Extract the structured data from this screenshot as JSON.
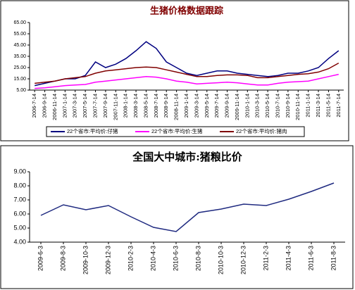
{
  "chart_data": [
    {
      "type": "line",
      "title": "生猪价格数据跟踪",
      "title_color": "#800000",
      "categories": [
        "2006-7-14",
        "2006-9-14",
        "2006-11-14",
        "2007-1-14",
        "2007-3-14",
        "2007-5-14",
        "2007-7-14",
        "2007-9-14",
        "2007-11-14",
        "2008-1-14",
        "2008-3-14",
        "2008-5-14",
        "2008-7-14",
        "2008-9-14",
        "2008-11-14",
        "2009-1-14",
        "2009-3-14",
        "2009-5-14",
        "2009-7-14",
        "2009-9-14",
        "2009-11-14",
        "2010-1-14",
        "2010-3-14",
        "2010-5-14",
        "2010-7-14",
        "2010-9-14",
        "2010-11-14",
        "2011-1-14",
        "2011-3-14",
        "2011-5-14",
        "2011-7-14"
      ],
      "series": [
        {
          "name": "22个省市:平均价:仔猪",
          "color": "#000080",
          "values": [
            9,
            11,
            13,
            15,
            15,
            18,
            30,
            25,
            28,
            33,
            40,
            48,
            42,
            30,
            25,
            20,
            18,
            20,
            22,
            22,
            20,
            19,
            18,
            17,
            18,
            20,
            20,
            22,
            25,
            33,
            40
          ]
        },
        {
          "name": "22个省市:平均价:生猪",
          "color": "#ff00ff",
          "values": [
            6.5,
            7,
            8,
            9,
            9.5,
            10,
            12,
            13,
            14,
            15,
            16,
            17,
            16.5,
            15,
            13,
            12,
            10.5,
            11,
            11.5,
            12,
            11.5,
            10.5,
            9.5,
            9.5,
            11,
            12,
            12.5,
            13,
            15,
            17,
            19
          ]
        },
        {
          "name": "22个省市:平均价:猪肉",
          "color": "#800000",
          "values": [
            11,
            12,
            13,
            15,
            16,
            17,
            20,
            22,
            23,
            24,
            25,
            25.5,
            25,
            23,
            21,
            19,
            17,
            17,
            18,
            18.5,
            18.5,
            18,
            16,
            16,
            17,
            18,
            19,
            19.5,
            21,
            24,
            29
          ]
        }
      ],
      "ylim": [
        5,
        65
      ],
      "yticks": [
        {
          "value": 5,
          "label": "5.00"
        },
        {
          "value": 15,
          "label": "15.00"
        },
        {
          "value": 25,
          "label": "25.00"
        },
        {
          "value": 35,
          "label": "35.00"
        },
        {
          "value": 45,
          "label": "45.00"
        },
        {
          "value": 55,
          "label": "55.00"
        },
        {
          "value": 65,
          "label": "65.00"
        }
      ],
      "grid": false,
      "legend": "bottom"
    },
    {
      "type": "line",
      "title": "全国大中城市:猪粮比价",
      "title_color": "#000000",
      "categories": [
        "2009-6-3",
        "2009-8-3",
        "2009-10-3",
        "2009-12-3",
        "2010-2-3",
        "2010-4-3",
        "2010-6-3",
        "2010-8-3",
        "2010-10-3",
        "2010-12-3",
        "2011-2-3",
        "2011-4-3",
        "2011-6-3",
        "2011-8-3"
      ],
      "series": [
        {
          "color": "#1f2a80",
          "values": [
            5.9,
            6.65,
            6.3,
            6.6,
            5.8,
            5.05,
            4.75,
            6.1,
            6.35,
            6.7,
            6.6,
            7.05,
            7.6,
            8.2
          ]
        }
      ],
      "ylim": [
        4,
        9
      ],
      "yticks": [
        {
          "value": 4,
          "label": "4.00"
        },
        {
          "value": 5,
          "label": "5.00"
        },
        {
          "value": 6,
          "label": "6.00"
        },
        {
          "value": 7,
          "label": "7.00"
        },
        {
          "value": 8,
          "label": "8.00"
        },
        {
          "value": 9,
          "label": "9.00"
        }
      ],
      "grid": false
    }
  ]
}
